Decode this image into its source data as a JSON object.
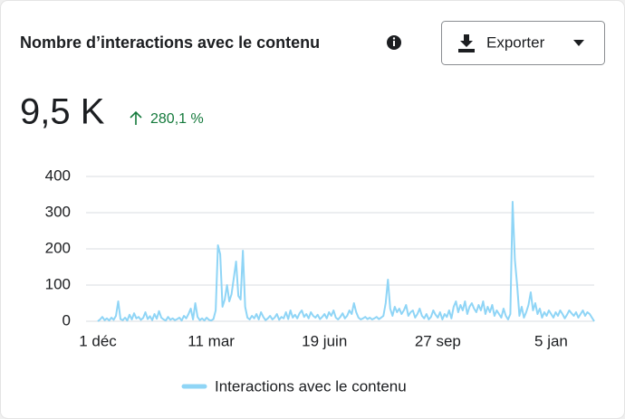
{
  "header": {
    "title": "Nombre d’interactions avec le contenu",
    "button": "Exporter"
  },
  "kpi": {
    "value": "9,5 K",
    "change": "280,1 %"
  },
  "chart_data": {
    "type": "line",
    "categories": [
      "1 déc",
      null,
      null,
      null,
      null,
      null,
      null,
      null,
      null,
      null,
      null,
      null,
      null,
      null,
      null,
      null,
      null,
      null,
      null,
      null,
      null,
      null,
      null,
      null,
      null,
      null,
      null,
      null,
      null,
      null,
      null,
      null,
      null,
      null,
      null,
      null,
      null,
      null,
      null,
      null,
      null,
      null,
      null,
      null,
      null,
      null,
      null,
      null,
      null,
      null,
      "11 mar",
      null,
      null,
      null,
      null,
      null,
      null,
      null,
      null,
      null,
      null,
      null,
      null,
      null,
      null,
      null,
      null,
      null,
      null,
      null,
      null,
      null,
      null,
      null,
      null,
      null,
      null,
      null,
      null,
      null,
      null,
      null,
      null,
      null,
      null,
      null,
      null,
      null,
      null,
      null,
      null,
      null,
      null,
      null,
      null,
      null,
      null,
      null,
      null,
      null,
      "19 juin",
      null,
      null,
      null,
      null,
      null,
      null,
      null,
      null,
      null,
      null,
      null,
      null,
      null,
      null,
      null,
      null,
      null,
      null,
      null,
      null,
      null,
      null,
      null,
      null,
      null,
      null,
      null,
      null,
      null,
      null,
      null,
      null,
      null,
      null,
      null,
      null,
      null,
      null,
      null,
      null,
      null,
      null,
      null,
      null,
      null,
      null,
      null,
      null,
      null,
      "27 sep",
      null,
      null,
      null,
      null,
      null,
      null,
      null,
      null,
      null,
      null,
      null,
      null,
      null,
      null,
      null,
      null,
      null,
      null,
      null,
      null,
      null,
      null,
      null,
      null,
      null,
      null,
      null,
      null,
      null,
      null,
      null,
      null,
      null,
      null,
      null,
      null,
      null,
      null,
      null,
      null,
      null,
      null,
      null,
      null,
      null,
      null,
      null,
      null,
      null,
      "5 jan",
      null,
      null,
      null,
      null,
      null,
      null,
      null,
      null,
      null,
      null,
      null,
      null,
      null,
      null,
      null,
      null,
      null,
      null,
      null
    ],
    "series": [
      {
        "name": "Interactions avec le contenu",
        "color": "#8fd5f6",
        "values": [
          0,
          5,
          12,
          3,
          8,
          2,
          10,
          4,
          15,
          55,
          6,
          3,
          10,
          2,
          18,
          5,
          22,
          8,
          12,
          4,
          9,
          25,
          6,
          14,
          3,
          20,
          7,
          28,
          10,
          5,
          2,
          12,
          4,
          8,
          3,
          6,
          10,
          2,
          15,
          8,
          20,
          35,
          5,
          50,
          12,
          3,
          8,
          2,
          10,
          4,
          2,
          6,
          30,
          210,
          185,
          40,
          60,
          100,
          55,
          75,
          120,
          165,
          70,
          60,
          195,
          40,
          10,
          5,
          15,
          8,
          20,
          5,
          25,
          12,
          3,
          8,
          15,
          5,
          10,
          20,
          4,
          12,
          8,
          25,
          6,
          30,
          10,
          18,
          8,
          22,
          30,
          12,
          20,
          8,
          25,
          15,
          10,
          18,
          6,
          12,
          20,
          8,
          25,
          15,
          30,
          10,
          5,
          12,
          22,
          8,
          15,
          30,
          20,
          50,
          25,
          10,
          5,
          8,
          12,
          6,
          10,
          5,
          8,
          12,
          6,
          10,
          15,
          50,
          115,
          35,
          15,
          40,
          25,
          35,
          20,
          30,
          45,
          15,
          25,
          30,
          10,
          20,
          35,
          15,
          8,
          20,
          5,
          12,
          30,
          18,
          10,
          25,
          5,
          20,
          12,
          30,
          8,
          40,
          55,
          25,
          45,
          30,
          55,
          20,
          40,
          50,
          35,
          25,
          45,
          30,
          55,
          20,
          40,
          25,
          45,
          15,
          30,
          20,
          10,
          35,
          15,
          5,
          20,
          330,
          170,
          100,
          15,
          40,
          10,
          25,
          45,
          80,
          30,
          50,
          20,
          35,
          10,
          25,
          15,
          30,
          20,
          10,
          25,
          15,
          30,
          20,
          8,
          18,
          30,
          22,
          15,
          25,
          10,
          20,
          30,
          15,
          25,
          20,
          10,
          0
        ]
      }
    ],
    "ylim": [
      0,
      400
    ],
    "yticks": [
      0,
      100,
      200,
      300,
      400
    ],
    "grid": true
  }
}
